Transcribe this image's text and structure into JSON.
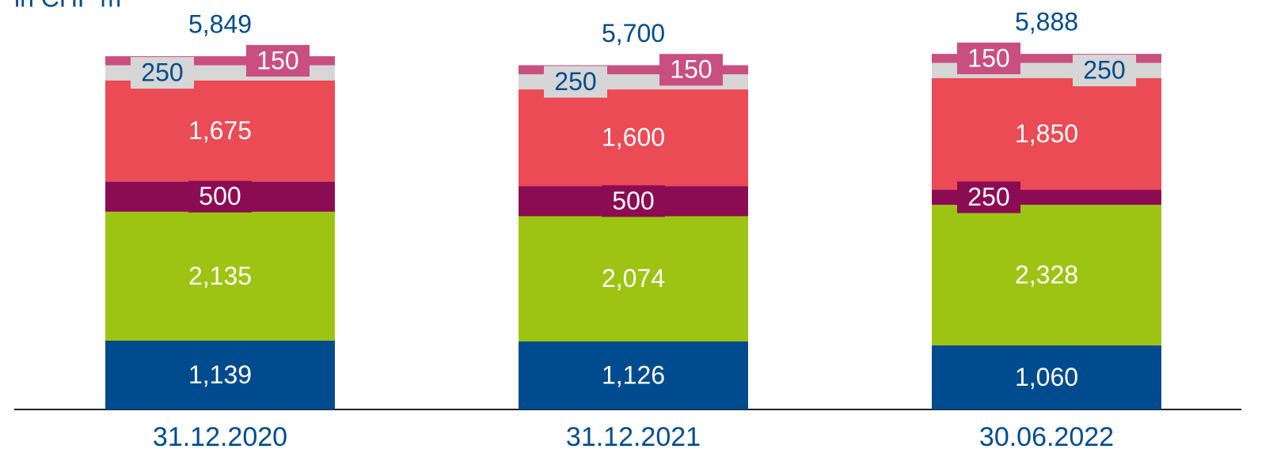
{
  "chart_data": {
    "type": "stacked_bar",
    "title": "in CHF m",
    "categories": [
      "31.12.2020",
      "31.12.2021",
      "30.06.2022"
    ],
    "ylim": [
      0,
      6780
    ],
    "series": [
      {
        "color": "#004b8d",
        "label_color": "#ffffff",
        "values": [
          1139,
          1126,
          1060
        ],
        "value_labels": [
          "1,139",
          "1,126",
          "1,060"
        ]
      },
      {
        "color": "#9dc412",
        "label_color": "#ffffff",
        "values": [
          2135,
          2074,
          2328
        ],
        "value_labels": [
          "2,135",
          "2,074",
          "2,328"
        ]
      },
      {
        "color": "#8c0c54",
        "label_color": "#ffffff",
        "values": [
          500,
          500,
          250
        ],
        "value_labels": [
          "500",
          "500",
          "250"
        ]
      },
      {
        "color": "#ea4b55",
        "label_color": "#ffffff",
        "values": [
          1675,
          1600,
          1850
        ],
        "value_labels": [
          "1,675",
          "1,600",
          "1,850"
        ]
      },
      {
        "color": "#d6d6d6",
        "label_color": "#004b8d",
        "values": [
          250,
          250,
          250
        ],
        "value_labels": [
          "250",
          "250",
          "250"
        ]
      },
      {
        "color": "#c94f80",
        "label_color": "#ffffff",
        "values": [
          150,
          150,
          150
        ],
        "value_labels": [
          "150",
          "150",
          "150"
        ]
      }
    ],
    "totals": [
      5849,
      5700,
      5888
    ],
    "total_labels": [
      "5,849",
      "5,700",
      "5,888"
    ]
  }
}
